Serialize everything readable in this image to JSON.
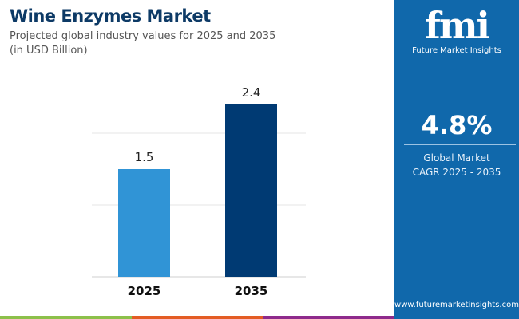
{
  "header": {
    "title": "Wine Enzymes Market",
    "subtitle": "Projected global industry values for 2025 and 2035",
    "unit": "(in USD Billion)"
  },
  "panel": {
    "logo_text": "fmi",
    "brand": "Future Market Insights",
    "cagr": "4.8%",
    "cagr_label_1": "Global Market",
    "cagr_label_2": "CAGR 2025 - 2035",
    "url": "www.futuremarketinsights.com"
  },
  "colors": {
    "bar_2025": "#3094d6",
    "bar_2035": "#003a73",
    "panel": "#1068ab",
    "strip": [
      "#8cc04a",
      "#e35c24",
      "#8e2b8c"
    ]
  },
  "chart_data": {
    "type": "bar",
    "categories": [
      "2025",
      "2035"
    ],
    "values": [
      1.5,
      2.4
    ],
    "data_labels": [
      "1.5",
      "2.4"
    ],
    "title": "Wine Enzymes Market",
    "xlabel": "",
    "ylabel": "",
    "ylim": [
      0,
      3
    ],
    "grid": true,
    "gridlines": [
      1,
      2
    ]
  }
}
